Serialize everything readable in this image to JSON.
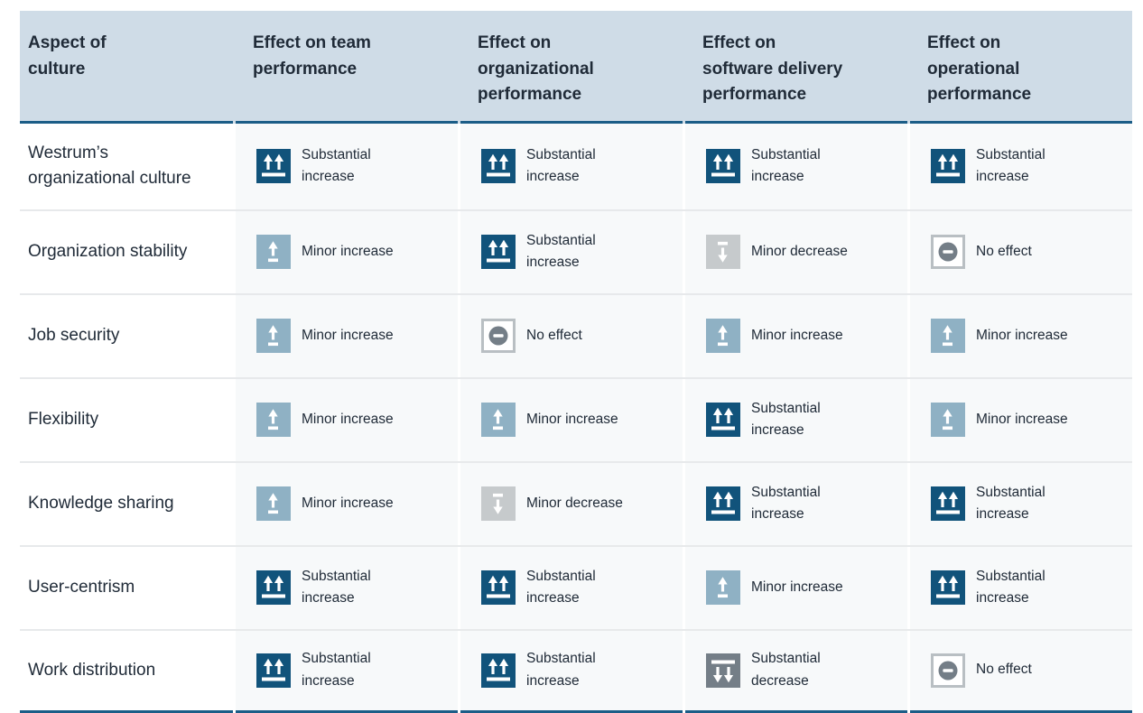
{
  "table": {
    "columns": [
      "Aspect of\nculture",
      "Effect on team\nperformance",
      "Effect on\norganizational\nperformance",
      "Effect on\nsoftware delivery\nperformance",
      "Effect on\noperational\nperformance"
    ],
    "rows": [
      {
        "label": "Westrum’s organizational culture",
        "effects": [
          "substantial-increase",
          "substantial-increase",
          "substantial-increase",
          "substantial-increase"
        ]
      },
      {
        "label": "Organization stability",
        "effects": [
          "minor-increase",
          "substantial-increase",
          "minor-decrease",
          "no-effect"
        ]
      },
      {
        "label": "Job security",
        "effects": [
          "minor-increase",
          "no-effect",
          "minor-increase",
          "minor-increase"
        ]
      },
      {
        "label": "Flexibility",
        "effects": [
          "minor-increase",
          "minor-increase",
          "substantial-increase",
          "minor-increase"
        ]
      },
      {
        "label": "Knowledge sharing",
        "effects": [
          "minor-increase",
          "minor-decrease",
          "substantial-increase",
          "substantial-increase"
        ]
      },
      {
        "label": "User-centrism",
        "effects": [
          "substantial-increase",
          "substantial-increase",
          "minor-increase",
          "substantial-increase"
        ]
      },
      {
        "label": "Work distribution",
        "effects": [
          "substantial-increase",
          "substantial-increase",
          "substantial-decrease",
          "no-effect"
        ]
      }
    ],
    "effect_types": {
      "substantial-increase": {
        "label": "Substantial increase",
        "color": "#11537b"
      },
      "minor-increase": {
        "label": "Minor increase",
        "color": "#8fb1c4"
      },
      "minor-decrease": {
        "label": "Minor decrease",
        "color": "#c6cacc"
      },
      "substantial-decrease": {
        "label": "Substantial decrease",
        "color": "#747e87"
      },
      "no-effect": {
        "label": "No effect",
        "color": "#747e87",
        "border": "#b9bfc3"
      }
    },
    "theme": {
      "header_bg": "#cfdce7",
      "accent_border": "#1b5d87",
      "row_divider": "#e7e9eb",
      "cell_bg": "#f7f9fa",
      "text": "#202b38"
    }
  },
  "chart_data": {
    "type": "table",
    "title": "",
    "columns": [
      "Aspect of culture",
      "Effect on team performance",
      "Effect on organizational performance",
      "Effect on software delivery performance",
      "Effect on operational performance"
    ],
    "rows": [
      [
        "Westrum’s organizational culture",
        "Substantial increase",
        "Substantial increase",
        "Substantial increase",
        "Substantial increase"
      ],
      [
        "Organization stability",
        "Minor increase",
        "Substantial increase",
        "Minor decrease",
        "No effect"
      ],
      [
        "Job security",
        "Minor increase",
        "No effect",
        "Minor increase",
        "Minor increase"
      ],
      [
        "Flexibility",
        "Minor increase",
        "Minor increase",
        "Substantial increase",
        "Minor increase"
      ],
      [
        "Knowledge sharing",
        "Minor increase",
        "Minor decrease",
        "Substantial increase",
        "Substantial increase"
      ],
      [
        "User-centrism",
        "Substantial increase",
        "Substantial increase",
        "Minor increase",
        "Substantial increase"
      ],
      [
        "Work distribution",
        "Substantial increase",
        "Substantial increase",
        "Substantial decrease",
        "No effect"
      ]
    ],
    "legend": {
      "substantial-increase": "dark blue square, two up arrows over bar",
      "minor-increase": "light blue square, one up arrow over short bar",
      "minor-decrease": "light gray square, short bar over one down arrow",
      "substantial-decrease": "dark gray square, bar over two down arrows",
      "no-effect": "white square with gray border, gray circle with minus"
    }
  }
}
